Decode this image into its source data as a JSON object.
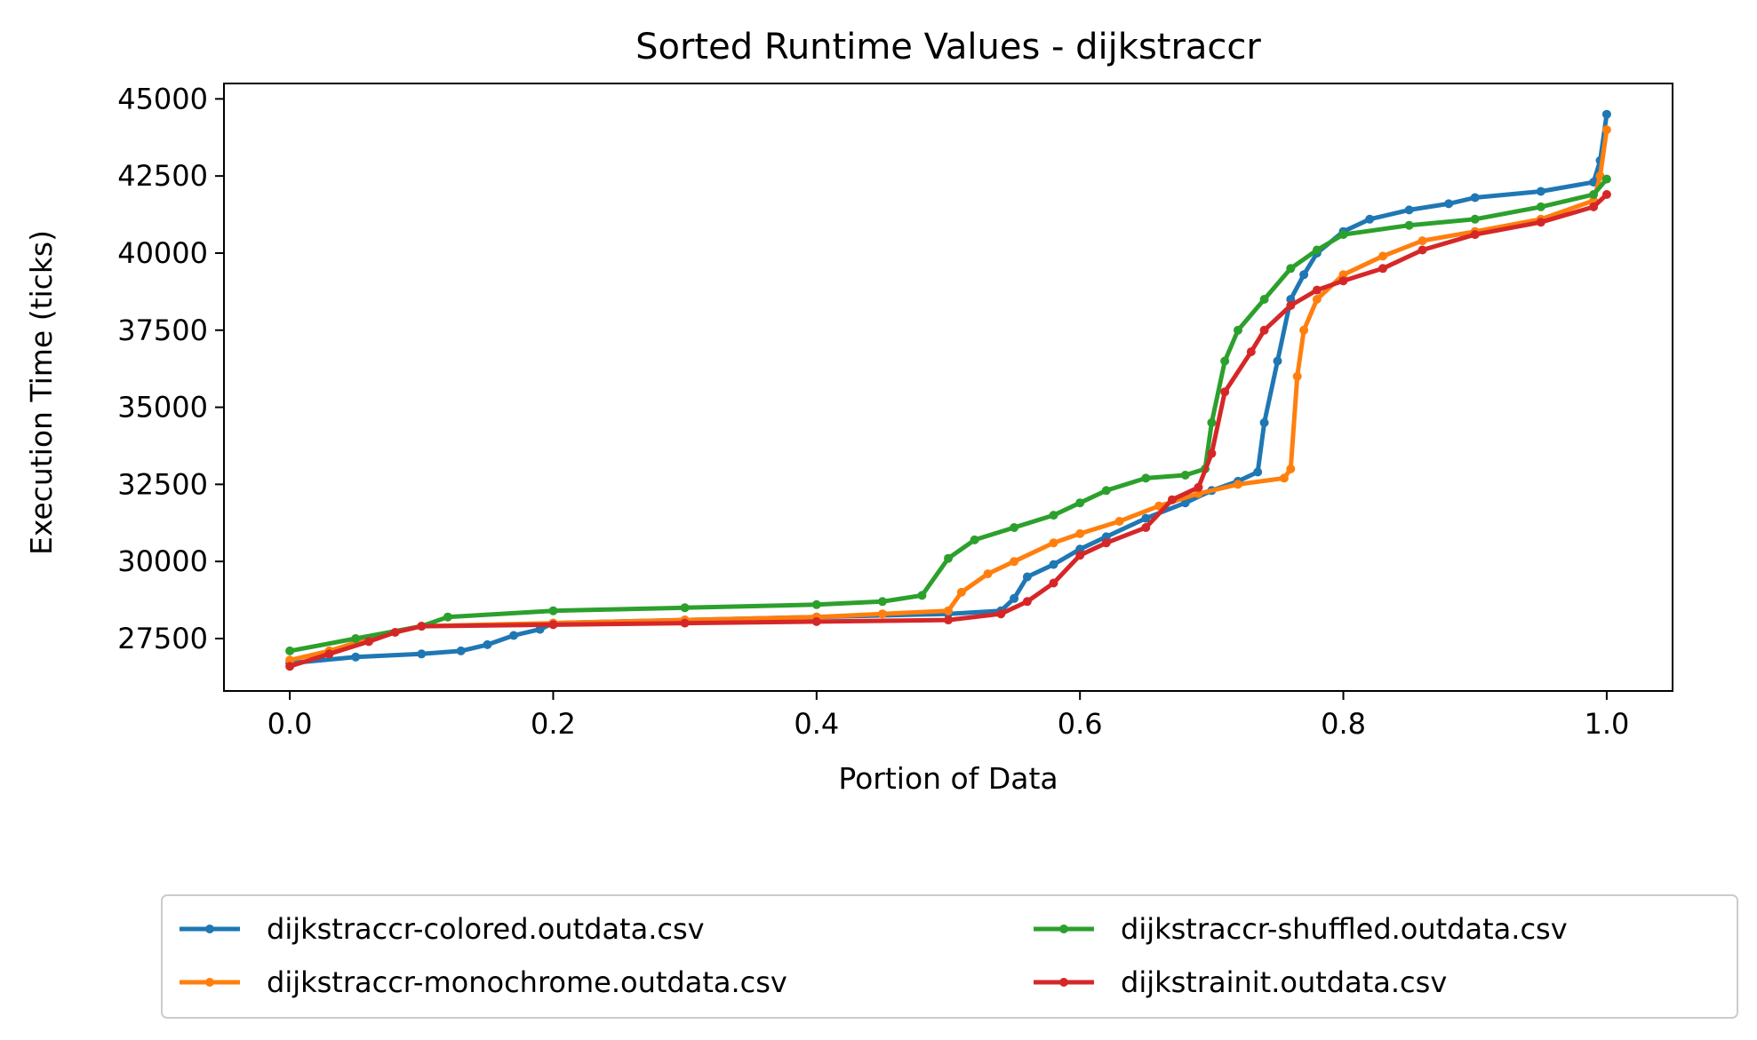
{
  "chart_data": {
    "type": "line",
    "title": "Sorted Runtime Values - dijkstraccr",
    "xlabel": "Portion of Data",
    "ylabel": "Execution Time (ticks)",
    "xlim": [
      -0.05,
      1.05
    ],
    "ylim": [
      25800,
      45500
    ],
    "xticks": [
      0.0,
      0.2,
      0.4,
      0.6,
      0.8,
      1.0
    ],
    "xtick_labels": [
      "0.0",
      "0.2",
      "0.4",
      "0.6",
      "0.8",
      "1.0"
    ],
    "yticks": [
      27500,
      30000,
      32500,
      35000,
      37500,
      40000,
      42500,
      45000
    ],
    "ytick_labels": [
      "27500",
      "30000",
      "32500",
      "35000",
      "37500",
      "40000",
      "42500",
      "45000"
    ],
    "grid": false,
    "legend_position": "below",
    "series": [
      {
        "name": "dijkstraccr-colored.outdata.csv",
        "color": "#1f77b4",
        "points": [
          [
            0.0,
            26700
          ],
          [
            0.05,
            26900
          ],
          [
            0.1,
            27000
          ],
          [
            0.13,
            27100
          ],
          [
            0.15,
            27300
          ],
          [
            0.17,
            27600
          ],
          [
            0.19,
            27800
          ],
          [
            0.2,
            28000
          ],
          [
            0.3,
            28100
          ],
          [
            0.4,
            28200
          ],
          [
            0.5,
            28300
          ],
          [
            0.54,
            28400
          ],
          [
            0.55,
            28800
          ],
          [
            0.56,
            29500
          ],
          [
            0.58,
            29900
          ],
          [
            0.6,
            30400
          ],
          [
            0.62,
            30800
          ],
          [
            0.65,
            31400
          ],
          [
            0.68,
            31900
          ],
          [
            0.7,
            32300
          ],
          [
            0.72,
            32600
          ],
          [
            0.735,
            32900
          ],
          [
            0.74,
            34500
          ],
          [
            0.75,
            36500
          ],
          [
            0.76,
            38500
          ],
          [
            0.77,
            39300
          ],
          [
            0.78,
            40000
          ],
          [
            0.8,
            40700
          ],
          [
            0.82,
            41100
          ],
          [
            0.85,
            41400
          ],
          [
            0.88,
            41600
          ],
          [
            0.9,
            41800
          ],
          [
            0.95,
            42000
          ],
          [
            0.99,
            42300
          ],
          [
            0.995,
            43000
          ],
          [
            1.0,
            44500
          ]
        ]
      },
      {
        "name": "dijkstraccr-monochrome.outdata.csv",
        "color": "#ff7f0e",
        "points": [
          [
            0.0,
            26800
          ],
          [
            0.03,
            27100
          ],
          [
            0.06,
            27500
          ],
          [
            0.1,
            27900
          ],
          [
            0.2,
            28000
          ],
          [
            0.3,
            28100
          ],
          [
            0.4,
            28200
          ],
          [
            0.45,
            28300
          ],
          [
            0.5,
            28400
          ],
          [
            0.51,
            29000
          ],
          [
            0.53,
            29600
          ],
          [
            0.55,
            30000
          ],
          [
            0.58,
            30600
          ],
          [
            0.6,
            30900
          ],
          [
            0.63,
            31300
          ],
          [
            0.66,
            31800
          ],
          [
            0.69,
            32200
          ],
          [
            0.72,
            32500
          ],
          [
            0.755,
            32700
          ],
          [
            0.76,
            33000
          ],
          [
            0.765,
            36000
          ],
          [
            0.77,
            37500
          ],
          [
            0.78,
            38500
          ],
          [
            0.8,
            39300
          ],
          [
            0.83,
            39900
          ],
          [
            0.86,
            40400
          ],
          [
            0.9,
            40700
          ],
          [
            0.95,
            41100
          ],
          [
            0.99,
            41700
          ],
          [
            0.995,
            42500
          ],
          [
            1.0,
            44000
          ]
        ]
      },
      {
        "name": "dijkstraccr-shuffled.outdata.csv",
        "color": "#2ca02c",
        "points": [
          [
            0.0,
            27100
          ],
          [
            0.05,
            27500
          ],
          [
            0.1,
            27900
          ],
          [
            0.12,
            28200
          ],
          [
            0.2,
            28400
          ],
          [
            0.3,
            28500
          ],
          [
            0.4,
            28600
          ],
          [
            0.45,
            28700
          ],
          [
            0.48,
            28900
          ],
          [
            0.5,
            30100
          ],
          [
            0.52,
            30700
          ],
          [
            0.55,
            31100
          ],
          [
            0.58,
            31500
          ],
          [
            0.6,
            31900
          ],
          [
            0.62,
            32300
          ],
          [
            0.65,
            32700
          ],
          [
            0.68,
            32800
          ],
          [
            0.695,
            33000
          ],
          [
            0.7,
            34500
          ],
          [
            0.71,
            36500
          ],
          [
            0.72,
            37500
          ],
          [
            0.74,
            38500
          ],
          [
            0.76,
            39500
          ],
          [
            0.78,
            40100
          ],
          [
            0.8,
            40600
          ],
          [
            0.85,
            40900
          ],
          [
            0.9,
            41100
          ],
          [
            0.95,
            41500
          ],
          [
            0.99,
            41900
          ],
          [
            1.0,
            42400
          ]
        ]
      },
      {
        "name": "dijkstrainit.outdata.csv",
        "color": "#d62728",
        "points": [
          [
            0.0,
            26600
          ],
          [
            0.03,
            27000
          ],
          [
            0.06,
            27400
          ],
          [
            0.08,
            27700
          ],
          [
            0.1,
            27900
          ],
          [
            0.2,
            27950
          ],
          [
            0.3,
            28000
          ],
          [
            0.4,
            28050
          ],
          [
            0.5,
            28100
          ],
          [
            0.54,
            28300
          ],
          [
            0.56,
            28700
          ],
          [
            0.58,
            29300
          ],
          [
            0.6,
            30200
          ],
          [
            0.62,
            30600
          ],
          [
            0.65,
            31100
          ],
          [
            0.67,
            32000
          ],
          [
            0.69,
            32400
          ],
          [
            0.7,
            33500
          ],
          [
            0.71,
            35500
          ],
          [
            0.73,
            36800
          ],
          [
            0.74,
            37500
          ],
          [
            0.76,
            38300
          ],
          [
            0.78,
            38800
          ],
          [
            0.8,
            39100
          ],
          [
            0.83,
            39500
          ],
          [
            0.86,
            40100
          ],
          [
            0.9,
            40600
          ],
          [
            0.95,
            41000
          ],
          [
            0.99,
            41500
          ],
          [
            1.0,
            41900
          ]
        ]
      }
    ]
  }
}
